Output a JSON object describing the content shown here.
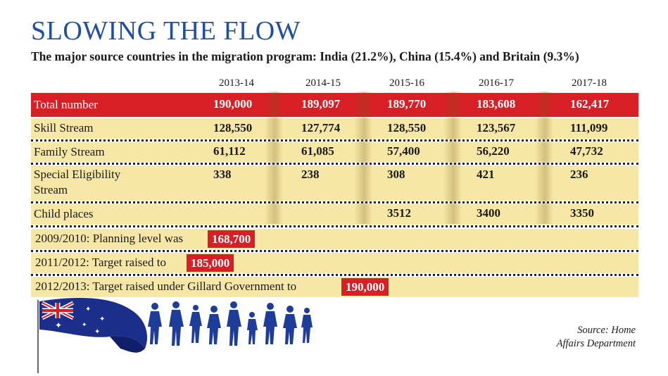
{
  "title": "SLOWING THE FLOW",
  "subtitle": "The major source countries in the migration program: India (21.2%), China (15.4%) and Britain (9.3%)",
  "chart_data": {
    "type": "table",
    "columns": [
      "2013-14",
      "2014-15",
      "2015-16",
      "2016-17",
      "2017-18"
    ],
    "rows": [
      {
        "label": "Total number",
        "values": [
          "190,000",
          "189,097",
          "189,770",
          "183,608",
          "162,417"
        ]
      },
      {
        "label": "Skill Stream",
        "values": [
          "128,550",
          "127,774",
          "128,550",
          "123,567",
          "111,099"
        ]
      },
      {
        "label": "Family Stream",
        "values": [
          "61,112",
          "61,085",
          "57,400",
          "56,220",
          "47,732"
        ]
      },
      {
        "label_line1": "Special Eligibility",
        "label_line2": "Stream",
        "values": [
          "338",
          "238",
          "308",
          "421",
          "236"
        ]
      },
      {
        "label": "Child places",
        "values": [
          "",
          "",
          "3512",
          "3400",
          "3350"
        ]
      }
    ],
    "notes": [
      {
        "text": "2009/2010: Planning level was",
        "value": "168,700"
      },
      {
        "text": "2011/2012: Target raised to",
        "value": "185,000"
      },
      {
        "text": "2012/2013: Target raised under Gillard Government to",
        "value": "190,000"
      }
    ],
    "source_line1": "Source: Home",
    "source_line2": "Affairs Department"
  },
  "colors": {
    "title": "#1f4fa0",
    "highlight": "#d81f26",
    "row_bg": "#f7e7a6"
  },
  "icons": [
    "australian-flag-icon",
    "migrant-silhouettes-icon"
  ]
}
